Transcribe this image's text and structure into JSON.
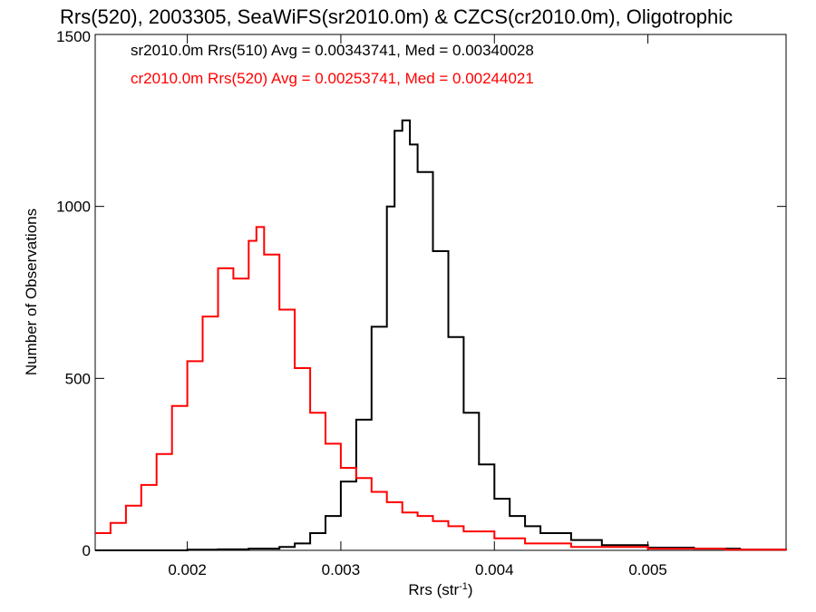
{
  "chart_data": {
    "type": "line",
    "title": "Rrs(520), 2003305, SeaWiFS(sr2010.0m) & CZCS(cr2010.0m), Oligotrophic",
    "xlabel": "Rrs (str",
    "xlabel_sup": "-1",
    "xlabel_end": ")",
    "ylabel": "Number of Observations",
    "xlim": [
      0.0014,
      0.0059
    ],
    "ylim": [
      0,
      1500
    ],
    "x_ticks": [
      0.002,
      0.003,
      0.004,
      0.005
    ],
    "x_tick_labels": [
      "0.002",
      "0.003",
      "0.004",
      "0.005"
    ],
    "y_ticks": [
      0,
      500,
      1000,
      1500
    ],
    "y_tick_labels": [
      "0",
      "500",
      "1000",
      "1500"
    ],
    "legend_position": "top-left",
    "series": [
      {
        "legend": "sr2010.0m Rrs(510) Avg = 0.00343741, Med = 0.00340028",
        "color": "#000000",
        "x": [
          0.0014,
          0.0017,
          0.002,
          0.0022,
          0.0024,
          0.0026,
          0.0027,
          0.0028,
          0.0029,
          0.003,
          0.0031,
          0.0032,
          0.0033,
          0.00335,
          0.0034,
          0.00345,
          0.0035,
          0.0036,
          0.0037,
          0.0038,
          0.0039,
          0.004,
          0.0041,
          0.0042,
          0.0043,
          0.0045,
          0.0047,
          0.005,
          0.0053,
          0.0056,
          0.0059
        ],
        "values": [
          0,
          0,
          2,
          3,
          5,
          10,
          20,
          50,
          100,
          200,
          380,
          650,
          1000,
          1220,
          1250,
          1180,
          1100,
          870,
          620,
          400,
          250,
          150,
          100,
          70,
          50,
          30,
          15,
          8,
          5,
          2,
          0
        ]
      },
      {
        "legend": "cr2010.0m Rrs(520) Avg = 0.00253741, Med = 0.00244021",
        "color": "#ff0000",
        "x": [
          0.0014,
          0.0015,
          0.0016,
          0.0017,
          0.0018,
          0.0019,
          0.002,
          0.0021,
          0.0022,
          0.0023,
          0.0024,
          0.00245,
          0.0025,
          0.0026,
          0.0027,
          0.0028,
          0.0029,
          0.003,
          0.0031,
          0.0032,
          0.0033,
          0.0034,
          0.0035,
          0.0036,
          0.0037,
          0.0038,
          0.004,
          0.0042,
          0.0045,
          0.005,
          0.0055,
          0.0059
        ],
        "values": [
          50,
          80,
          130,
          190,
          280,
          420,
          550,
          680,
          820,
          790,
          900,
          940,
          860,
          700,
          530,
          400,
          310,
          240,
          210,
          170,
          140,
          110,
          100,
          85,
          70,
          55,
          35,
          20,
          10,
          5,
          2,
          0
        ]
      }
    ]
  }
}
